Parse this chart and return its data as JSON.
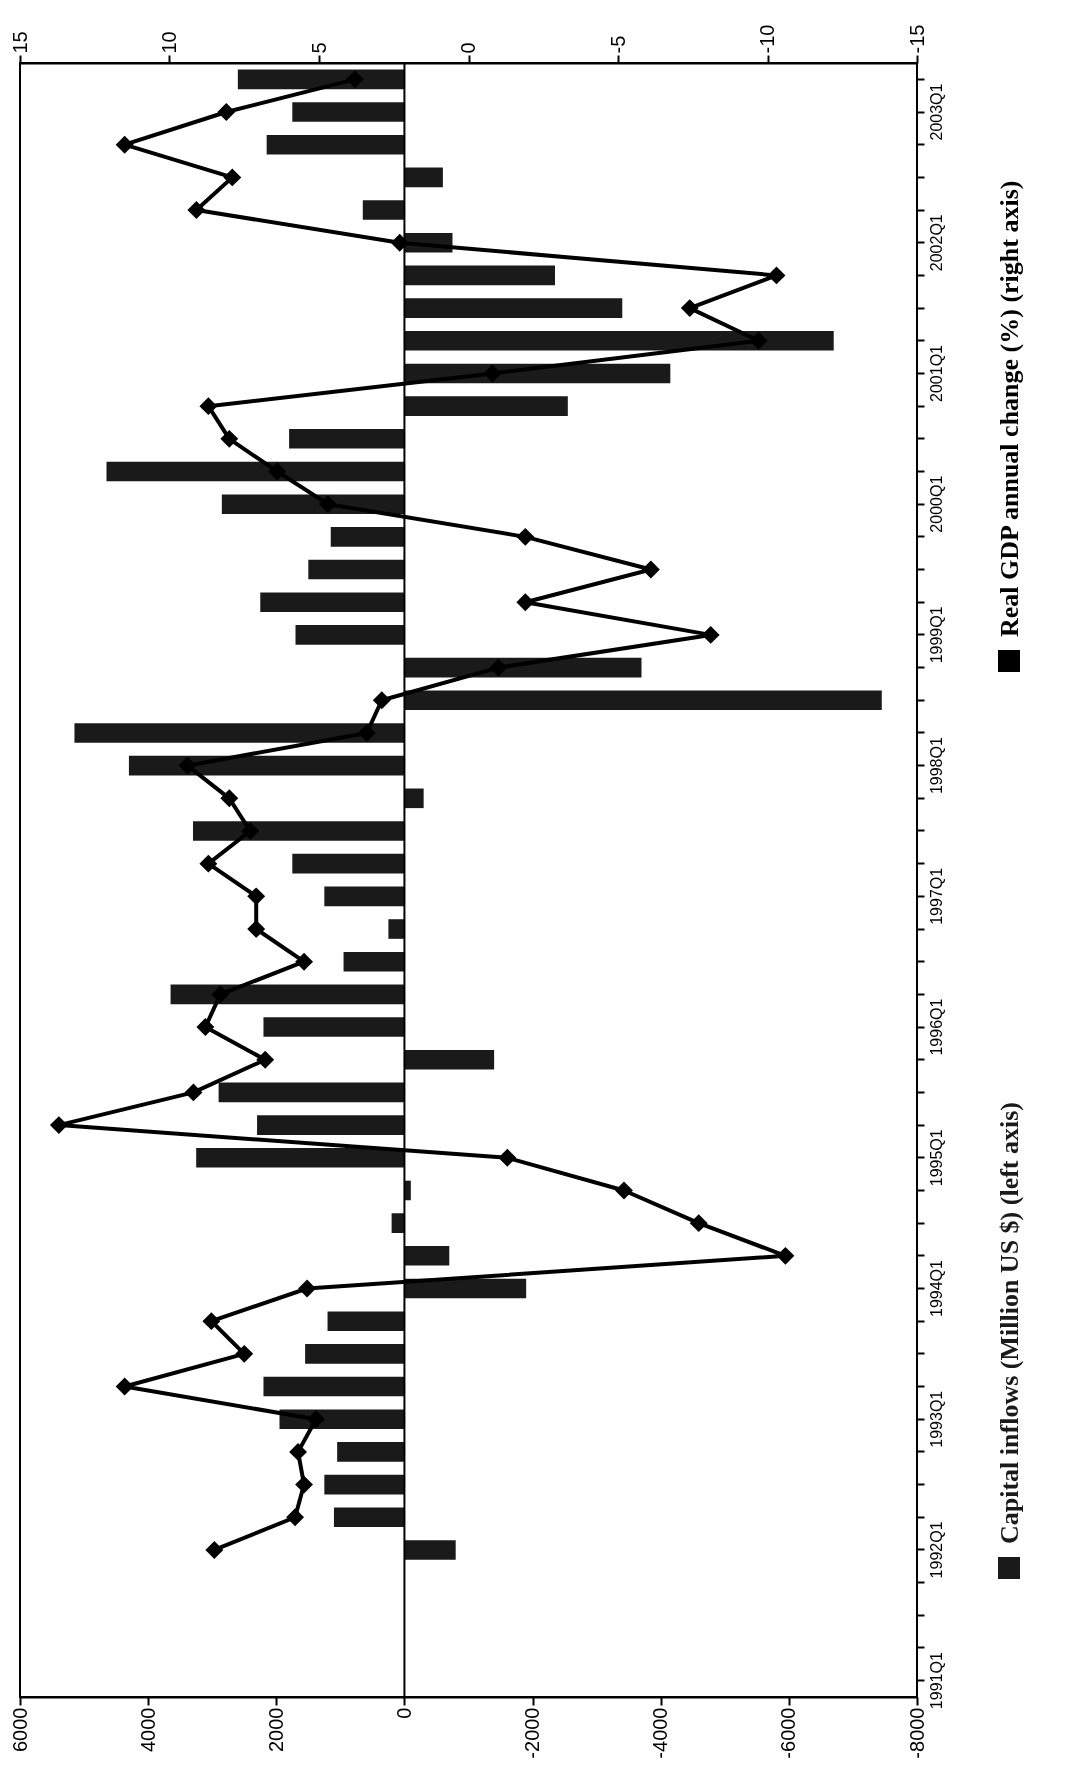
{
  "chart_data": {
    "type": "bar",
    "orientation": "horizontal",
    "categories": [
      null,
      "2003Q1",
      null,
      null,
      null,
      "2002Q1",
      null,
      null,
      null,
      "2001Q1",
      null,
      null,
      null,
      "2000Q1",
      null,
      null,
      null,
      "1999Q1",
      null,
      null,
      null,
      "1998Q1",
      null,
      null,
      null,
      "1997Q1",
      null,
      null,
      null,
      "1996Q1",
      null,
      null,
      null,
      "1995Q1",
      null,
      null,
      null,
      "1994Q1",
      null,
      null,
      null,
      "1993Q1",
      null,
      null,
      null,
      "1992Q1",
      null,
      null,
      null,
      "1991Q1"
    ],
    "series": [
      {
        "name": "Capital inflows (Million US $) (left axis)",
        "color": "#1a1a1a",
        "values": [
          2600,
          1750,
          2150,
          -600,
          650,
          -750,
          -2350,
          -3400,
          -6700,
          -4150,
          -2550,
          1800,
          4650,
          2850,
          1150,
          1500,
          2250,
          1700,
          -3700,
          -7450,
          5150,
          4300,
          -300,
          3300,
          1750,
          1250,
          250,
          950,
          3650,
          2200,
          -1400,
          2900,
          2300,
          3250,
          -100,
          200,
          -700,
          -1900,
          1200,
          1550,
          2200,
          1950,
          1050,
          1250,
          1100,
          -800,
          null,
          null,
          null,
          null
        ]
      },
      {
        "name": "Real GDP annual change (%) (right axis)",
        "type": "line",
        "axis": "x2",
        "color": "#000000",
        "marker": "diamond",
        "values": [
          3.8,
          8.1,
          11.5,
          7.9,
          9.1,
          2.3,
          -10.3,
          -7.4,
          -9.7,
          -0.8,
          8.7,
          8.0,
          6.4,
          4.7,
          -1.9,
          -6.1,
          -1.9,
          -8.1,
          -1.0,
          2.9,
          3.4,
          9.4,
          8.0,
          7.3,
          8.7,
          7.1,
          7.1,
          5.5,
          8.3,
          8.8,
          6.8,
          9.2,
          13.7,
          -1.3,
          -5.2,
          -7.7,
          -10.6,
          5.4,
          8.6,
          7.5,
          11.5,
          5.1,
          5.7,
          5.5,
          5.8,
          8.5,
          null,
          null,
          null,
          null
        ]
      }
    ],
    "xlim": [
      6000,
      -8000
    ],
    "xticks": [
      6000,
      4000,
      2000,
      0,
      -2000,
      -4000,
      -6000,
      -8000
    ],
    "x2lim": [
      15,
      -15
    ],
    "x2ticks": [
      15,
      10,
      5,
      0,
      -5,
      -10,
      -15
    ],
    "legend": "right"
  }
}
